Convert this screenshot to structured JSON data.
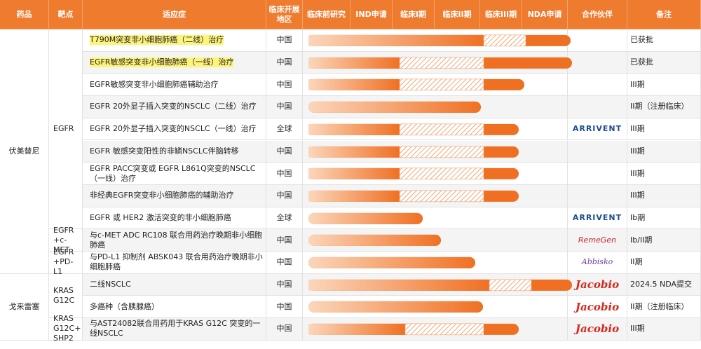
{
  "header": {
    "columns": [
      "药品",
      "靶点",
      "适应症",
      "临床开展地区",
      "临床前研究",
      "IND申请",
      "临床I期",
      "临床II期",
      "临床III期",
      "NDA申请",
      "合作伙伴",
      "备注"
    ]
  },
  "drugs": [
    {
      "name": "伏美替尼",
      "targets": [
        {
          "name": "EGFR",
          "rows": [
            {
              "indication": "T790M突变非小细胞肺癌（二线）治疗",
              "region": "中国",
              "note": "已获批"
            },
            {
              "indication": "EGFR敏感突变非小细胞肺癌（一线）治疗",
              "region": "中国",
              "note": "已获批"
            },
            {
              "indication": "EGFR敏感突变非小细胞肺癌辅助治疗",
              "region": "中国",
              "note": "III期"
            },
            {
              "indication": "EGFR 20外显子插入突变的NSCLC（二线）治疗",
              "region": "中国",
              "note": "II期（注册临床）"
            },
            {
              "indication": "EGFR 20外显子插入突变的NSCLC（一线）治疗",
              "region": "全球",
              "partner": "ARRIVENT",
              "note": "III期"
            },
            {
              "indication": "EGFR 敏感突变阳性的非鳞NSCLC伴脑转移",
              "region": "中国",
              "note": "III期"
            },
            {
              "indication": "EGFR PACC突变或 EGFR L861Q突变的NSCLC（一线）治疗",
              "region": "中国",
              "note": "III期"
            },
            {
              "indication": "非经典EGFR突变非小细胞肺癌的辅助治疗",
              "region": "中国",
              "note": "III期"
            },
            {
              "indication": "EGFR 或 HER2 激活突变的非小细胞肺癌",
              "region": "全球",
              "partner": "ARRIVENT",
              "note": "Ib期"
            }
          ]
        },
        {
          "name": "EGFR +c-MET",
          "rows": [
            {
              "indication": "与c-MET ADC RC108 联合用药治疗晚期非小细胞肺癌",
              "region": "中国",
              "partner": "RemeGen",
              "note": "Ib/II期"
            }
          ]
        },
        {
          "name": "EGFR +PD-L1",
          "rows": [
            {
              "indication": "与PD-L1 抑制剂 ABSK043 联合用药治疗晚期非小细胞肺癌",
              "region": "中国",
              "partner": "Abbisko",
              "note": "II期"
            }
          ]
        }
      ]
    },
    {
      "name": "戈来雷塞",
      "targets": [
        {
          "name": "KRAS G12C",
          "rows": [
            {
              "indication": "二线NSCLC",
              "region": "中国",
              "partner": "Jacobio",
              "note": "2024.5 NDA提交"
            },
            {
              "indication": "多癌种（含胰腺癌）",
              "region": "中国",
              "partner": "Jacobio",
              "note": "II期（注册临床）"
            }
          ]
        },
        {
          "name": "KRAS G12C+ SHP2",
          "rows": [
            {
              "indication": "与AST24082联合用药用于KRAS G12C 突变的一线NSCLC",
              "region": "中国",
              "partner": "Jacobio",
              "note": "III期"
            }
          ]
        }
      ]
    }
  ]
}
